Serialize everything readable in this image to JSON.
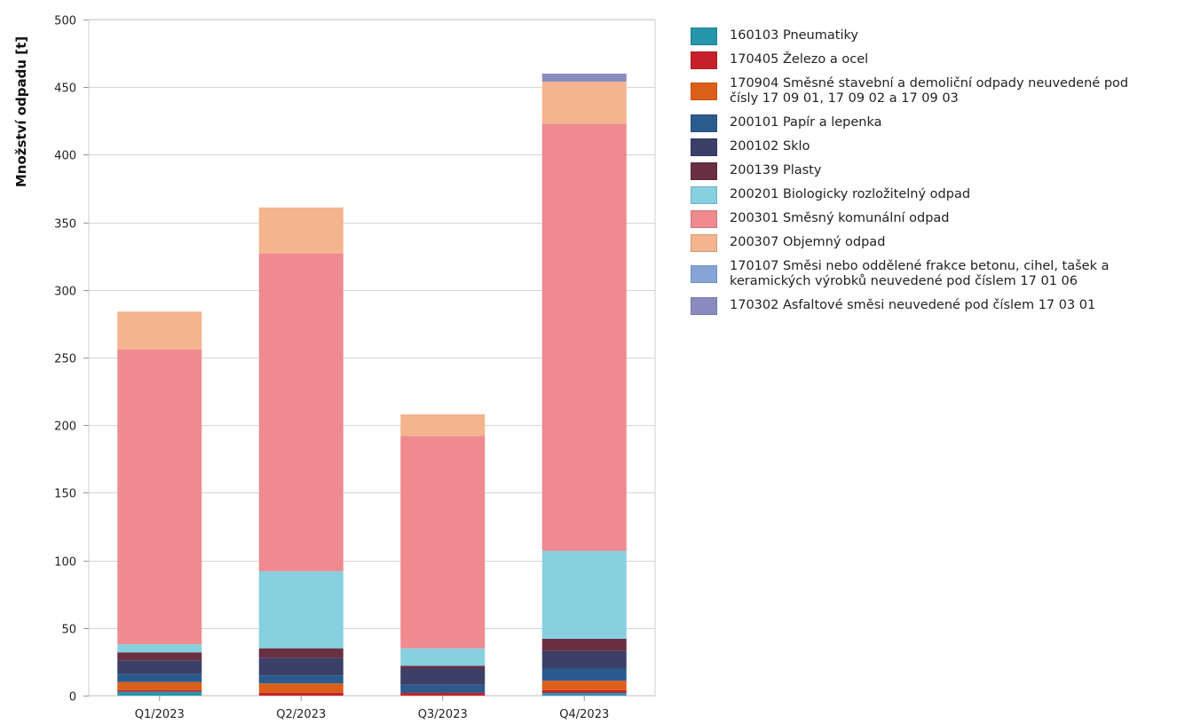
{
  "chart_data": {
    "type": "bar",
    "stacked": true,
    "title": "",
    "xlabel": "",
    "ylabel": "Množství odpadu [t]",
    "ylim": [
      0,
      500
    ],
    "yticks": [
      0,
      50,
      100,
      150,
      200,
      250,
      300,
      350,
      400,
      450,
      500
    ],
    "grid": true,
    "legend_position": "right",
    "categories": [
      "Q1/2023",
      "Q2/2023",
      "Q3/2023",
      "Q4/2023"
    ],
    "series": [
      {
        "name": "160103 Pneumatiky",
        "color": "#2596ab",
        "values": [
          3,
          0,
          0,
          2
        ]
      },
      {
        "name": "170405 Železo a ocel",
        "color": "#c8202a",
        "values": [
          1,
          2,
          2,
          2
        ]
      },
      {
        "name": "170904 Směsné stavební a demoliční odpady neuvedené pod čísly 17 09 01, 17 09 02 a 17 09 03",
        "color": "#dc5f19",
        "values": [
          6,
          7,
          0,
          7
        ]
      },
      {
        "name": "200101 Papír a lepenka",
        "color": "#2b5a8e",
        "values": [
          6,
          6,
          6,
          9
        ]
      },
      {
        "name": "200102 Sklo",
        "color": "#3a4068",
        "values": [
          10,
          13,
          12,
          13
        ]
      },
      {
        "name": "200139 Plasty",
        "color": "#6a2f42",
        "values": [
          6,
          7,
          2,
          9
        ]
      },
      {
        "name": "200201 Biologicky rozložitelný odpad",
        "color": "#87d0e0",
        "values": [
          6,
          57,
          13,
          65
        ]
      },
      {
        "name": "200301 Směsný komunální odpad",
        "color": "#ee8a90",
        "values": [
          218,
          235,
          157,
          316
        ]
      },
      {
        "name": "200307 Objemný odpad",
        "color": "#f4b48e",
        "values": [
          28,
          34,
          16,
          31
        ]
      },
      {
        "name": "170107 Směsi nebo oddělené frakce betonu, cihel, tašek a keramických výrobků neuvedené pod číslem 17 01 06",
        "color": "#86a5d6",
        "values": [
          0,
          0,
          0,
          0
        ]
      },
      {
        "name": "170302 Asfaltové směsi neuvedené pod číslem 17 03 01",
        "color": "#8a8cc0",
        "values": [
          0,
          0,
          0,
          6
        ]
      }
    ]
  }
}
